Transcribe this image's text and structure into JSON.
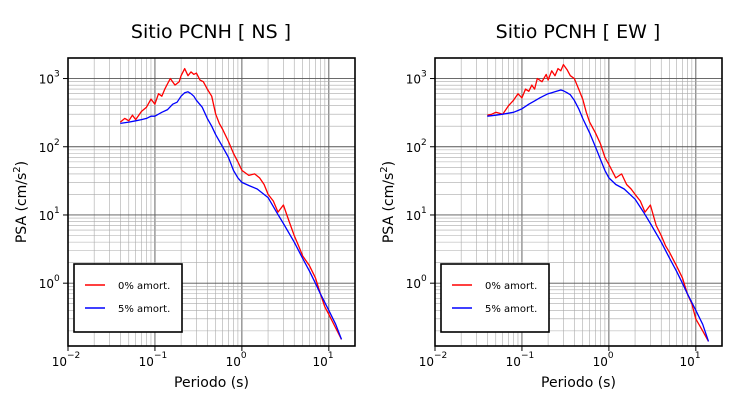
{
  "chart_data": [
    {
      "type": "line",
      "title": "Sitio PCNH [ NS ]",
      "xlabel": "Periodo (s)",
      "ylabel_main": "PSA (cm/s",
      "ylabel_sup": "2",
      "ylabel_end": ")",
      "xscale": "log",
      "yscale": "log",
      "xlim": [
        0.01,
        20
      ],
      "ylim": [
        0.12,
        2000
      ],
      "grid": true,
      "legend_position": "bottom-left",
      "x_ticks": [
        {
          "base": "10",
          "exp": "−2"
        },
        {
          "base": "10",
          "exp": "−1"
        },
        {
          "base": "10",
          "exp": "0"
        },
        {
          "base": "10",
          "exp": "1"
        }
      ],
      "y_ticks": [
        {
          "base": "10",
          "exp": "0"
        },
        {
          "base": "10",
          "exp": "1"
        },
        {
          "base": "10",
          "exp": "2"
        },
        {
          "base": "10",
          "exp": "3"
        }
      ],
      "series": [
        {
          "name": "0% amort.",
          "color": "#ff0000",
          "x": [
            0.04,
            0.045,
            0.05,
            0.055,
            0.06,
            0.07,
            0.08,
            0.09,
            0.1,
            0.11,
            0.12,
            0.13,
            0.15,
            0.17,
            0.19,
            0.2,
            0.22,
            0.24,
            0.26,
            0.28,
            0.3,
            0.33,
            0.36,
            0.4,
            0.45,
            0.5,
            0.55,
            0.6,
            0.7,
            0.8,
            0.9,
            1.0,
            1.2,
            1.4,
            1.6,
            1.8,
            2.0,
            2.3,
            2.6,
            3.0,
            3.5,
            4.0,
            4.5,
            5.0,
            6.0,
            7.0,
            8.0,
            9.0,
            10.0,
            12.0,
            14.0
          ],
          "y": [
            230,
            260,
            240,
            290,
            250,
            330,
            380,
            500,
            420,
            600,
            550,
            700,
            1000,
            800,
            900,
            1100,
            1400,
            1100,
            1250,
            1150,
            1200,
            950,
            900,
            700,
            550,
            300,
            220,
            180,
            120,
            80,
            60,
            45,
            38,
            40,
            35,
            28,
            20,
            16,
            11,
            14,
            8,
            5,
            3.5,
            2.5,
            1.8,
            1.2,
            0.7,
            0.45,
            0.35,
            0.22,
            0.15
          ]
        },
        {
          "name": "5% amort.",
          "color": "#0000ff",
          "x": [
            0.04,
            0.05,
            0.06,
            0.07,
            0.08,
            0.09,
            0.1,
            0.12,
            0.14,
            0.16,
            0.18,
            0.2,
            0.22,
            0.24,
            0.26,
            0.28,
            0.3,
            0.35,
            0.4,
            0.45,
            0.5,
            0.6,
            0.7,
            0.8,
            0.9,
            1.0,
            1.2,
            1.5,
            2.0,
            2.5,
            3.0,
            4.0,
            5.0,
            6.0,
            7.0,
            8.0,
            10.0,
            12.0,
            14.0
          ],
          "y": [
            220,
            230,
            240,
            250,
            260,
            280,
            280,
            320,
            350,
            420,
            450,
            550,
            620,
            640,
            600,
            550,
            480,
            380,
            260,
            200,
            150,
            100,
            70,
            45,
            35,
            30,
            27,
            24,
            18,
            11,
            7.5,
            4,
            2.3,
            1.5,
            1.0,
            0.7,
            0.4,
            0.25,
            0.15
          ]
        }
      ]
    },
    {
      "type": "line",
      "title": "Sitio PCNH [ EW ]",
      "xlabel": "Periodo (s)",
      "ylabel_main": "PSA (cm/s",
      "ylabel_sup": "2",
      "ylabel_end": ")",
      "xscale": "log",
      "yscale": "log",
      "xlim": [
        0.01,
        20
      ],
      "ylim": [
        0.12,
        2000
      ],
      "grid": true,
      "legend_position": "bottom-left",
      "x_ticks": [
        {
          "base": "10",
          "exp": "−2"
        },
        {
          "base": "10",
          "exp": "−1"
        },
        {
          "base": "10",
          "exp": "0"
        },
        {
          "base": "10",
          "exp": "1"
        }
      ],
      "y_ticks": [
        {
          "base": "10",
          "exp": "0"
        },
        {
          "base": "10",
          "exp": "1"
        },
        {
          "base": "10",
          "exp": "2"
        },
        {
          "base": "10",
          "exp": "3"
        }
      ],
      "series": [
        {
          "name": "0% amort.",
          "color": "#ff0000",
          "x": [
            0.04,
            0.045,
            0.05,
            0.055,
            0.06,
            0.07,
            0.08,
            0.09,
            0.1,
            0.11,
            0.12,
            0.13,
            0.14,
            0.15,
            0.17,
            0.19,
            0.2,
            0.22,
            0.24,
            0.26,
            0.28,
            0.3,
            0.33,
            0.36,
            0.4,
            0.45,
            0.5,
            0.55,
            0.6,
            0.7,
            0.8,
            0.9,
            1.0,
            1.2,
            1.4,
            1.6,
            1.8,
            2.0,
            2.3,
            2.6,
            3.0,
            3.5,
            4.0,
            4.5,
            5.0,
            6.0,
            7.0,
            8.0,
            9.0,
            10.0,
            12.0,
            14.0
          ],
          "y": [
            290,
            300,
            320,
            310,
            300,
            400,
            480,
            600,
            520,
            700,
            650,
            800,
            700,
            1000,
            900,
            1150,
            950,
            1300,
            1100,
            1400,
            1300,
            1600,
            1350,
            1100,
            1000,
            700,
            500,
            320,
            230,
            160,
            110,
            70,
            55,
            35,
            40,
            28,
            24,
            20,
            16,
            11,
            14,
            7,
            5,
            3.5,
            2.8,
            1.8,
            1.2,
            0.7,
            0.5,
            0.3,
            0.2,
            0.14
          ]
        },
        {
          "name": "5% amort.",
          "color": "#0000ff",
          "x": [
            0.04,
            0.05,
            0.06,
            0.07,
            0.08,
            0.09,
            0.1,
            0.12,
            0.14,
            0.16,
            0.18,
            0.2,
            0.22,
            0.25,
            0.28,
            0.3,
            0.33,
            0.36,
            0.4,
            0.45,
            0.5,
            0.6,
            0.7,
            0.8,
            0.9,
            1.0,
            1.2,
            1.5,
            2.0,
            2.5,
            3.0,
            4.0,
            5.0,
            6.0,
            7.0,
            8.0,
            10.0,
            12.0,
            14.0
          ],
          "y": [
            280,
            290,
            300,
            310,
            320,
            340,
            360,
            420,
            470,
            520,
            560,
            600,
            620,
            650,
            680,
            660,
            620,
            580,
            480,
            360,
            260,
            160,
            100,
            65,
            45,
            35,
            28,
            24,
            17,
            11,
            7.5,
            4,
            2.3,
            1.5,
            1.0,
            0.7,
            0.4,
            0.25,
            0.14
          ]
        }
      ]
    }
  ]
}
